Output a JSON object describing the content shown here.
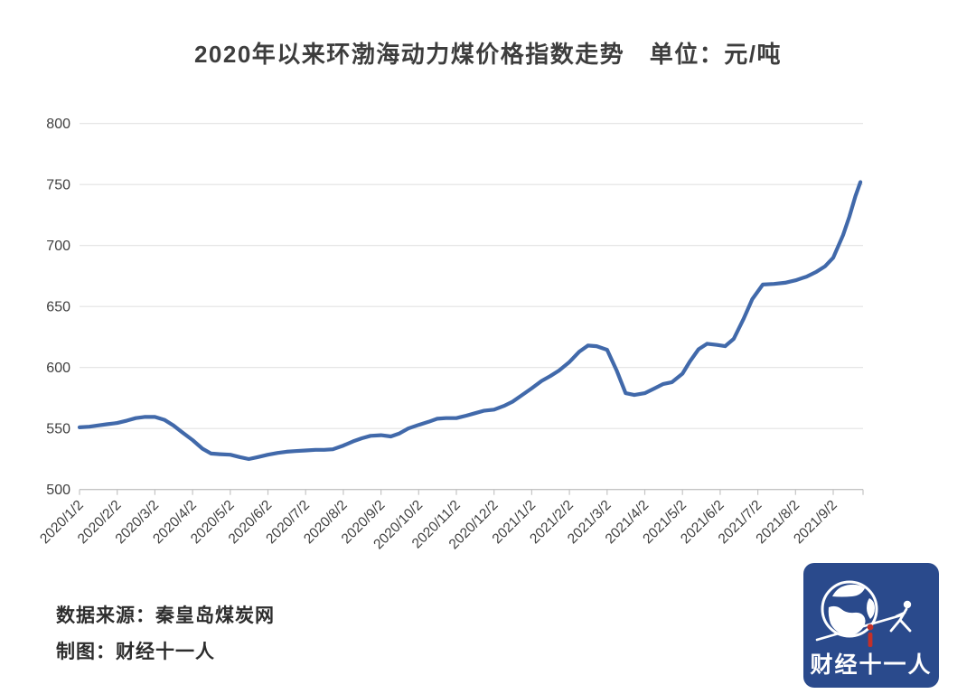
{
  "title": "2020年以来环渤海动力煤价格指数走势　单位：元/吨",
  "chart_data": {
    "type": "line",
    "title": "2020年以来环渤海动力煤价格指数走势",
    "unit_label": "单位：元/吨",
    "xlabel": "",
    "ylabel": "",
    "ylim": [
      500,
      800
    ],
    "y_ticks": [
      500,
      550,
      600,
      650,
      700,
      750,
      800
    ],
    "x_tick_labels": [
      "2020/1/2",
      "2020/2/2",
      "2020/3/2",
      "2020/4/2",
      "2020/5/2",
      "2020/6/2",
      "2020/7/2",
      "2020/8/2",
      "2020/9/2",
      "2020/10/2",
      "2020/11/2",
      "2020/12/2",
      "2021/1/2",
      "2021/2/2",
      "2021/3/2",
      "2021/4/2",
      "2021/5/2",
      "2021/6/2",
      "2021/7/2",
      "2021/8/2",
      "2021/9/2"
    ],
    "grid": true,
    "legend_position": "none",
    "line_color": "#4169aa",
    "grid_color": "#e3e3e3",
    "axis_color": "#c4c4c4",
    "label_color": "#3f3f3f",
    "series": [
      {
        "name": "环渤海动力煤价格指数 (元/吨)",
        "points": [
          [
            "2020/1/2",
            551
          ],
          [
            "2020/1/10",
            551.5
          ],
          [
            "2020/1/17",
            552.5
          ],
          [
            "2020/1/24",
            553.5
          ],
          [
            "2020/2/2",
            554.5
          ],
          [
            "2020/2/10",
            556.5
          ],
          [
            "2020/2/17",
            558.5
          ],
          [
            "2020/2/24",
            559.5
          ],
          [
            "2020/3/2",
            559.5
          ],
          [
            "2020/3/10",
            557
          ],
          [
            "2020/3/17",
            552.5
          ],
          [
            "2020/3/24",
            547
          ],
          [
            "2020/4/2",
            540.5
          ],
          [
            "2020/4/10",
            533.5
          ],
          [
            "2020/4/17",
            529.5
          ],
          [
            "2020/4/24",
            529
          ],
          [
            "2020/5/2",
            528.5
          ],
          [
            "2020/5/10",
            526.5
          ],
          [
            "2020/5/17",
            525
          ],
          [
            "2020/5/24",
            526.5
          ],
          [
            "2020/6/2",
            528.5
          ],
          [
            "2020/6/10",
            530
          ],
          [
            "2020/6/17",
            531
          ],
          [
            "2020/6/24",
            531.5
          ],
          [
            "2020/7/2",
            532
          ],
          [
            "2020/7/10",
            532.5
          ],
          [
            "2020/7/17",
            532.5
          ],
          [
            "2020/7/24",
            533
          ],
          [
            "2020/8/2",
            536
          ],
          [
            "2020/8/10",
            539.5
          ],
          [
            "2020/8/17",
            542
          ],
          [
            "2020/8/24",
            544
          ],
          [
            "2020/9/2",
            544.5
          ],
          [
            "2020/9/10",
            543.5
          ],
          [
            "2020/9/17",
            546
          ],
          [
            "2020/9/24",
            550
          ],
          [
            "2020/10/2",
            553
          ],
          [
            "2020/10/10",
            555.5
          ],
          [
            "2020/10/17",
            558
          ],
          [
            "2020/10/24",
            558.5
          ],
          [
            "2020/11/2",
            558.5
          ],
          [
            "2020/11/10",
            560.5
          ],
          [
            "2020/11/17",
            562.5
          ],
          [
            "2020/11/24",
            564.5
          ],
          [
            "2020/12/2",
            565.5
          ],
          [
            "2020/12/10",
            568.5
          ],
          [
            "2020/12/17",
            572
          ],
          [
            "2020/12/24",
            577
          ],
          [
            "2021/1/2",
            583
          ],
          [
            "2021/1/10",
            589
          ],
          [
            "2021/1/17",
            593
          ],
          [
            "2021/1/24",
            597.5
          ],
          [
            "2021/2/2",
            604.5
          ],
          [
            "2021/2/10",
            613
          ],
          [
            "2021/2/17",
            618
          ],
          [
            "2021/2/24",
            617.5
          ],
          [
            "2021/3/2",
            614.5
          ],
          [
            "2021/3/10",
            597
          ],
          [
            "2021/3/17",
            579
          ],
          [
            "2021/3/24",
            577.5
          ],
          [
            "2021/4/2",
            579
          ],
          [
            "2021/4/10",
            583
          ],
          [
            "2021/4/17",
            586.5
          ],
          [
            "2021/4/24",
            588
          ],
          [
            "2021/5/2",
            595
          ],
          [
            "2021/5/8",
            605
          ],
          [
            "2021/5/15",
            615
          ],
          [
            "2021/5/22",
            619.5
          ],
          [
            "2021/5/30",
            618.5
          ],
          [
            "2021/6/6",
            617.5
          ],
          [
            "2021/6/13",
            623.5
          ],
          [
            "2021/6/21",
            640
          ],
          [
            "2021/6/28",
            656
          ],
          [
            "2021/7/6",
            668
          ],
          [
            "2021/7/15",
            668.5
          ],
          [
            "2021/7/24",
            669.5
          ],
          [
            "2021/8/2",
            671.5
          ],
          [
            "2021/8/11",
            674.5
          ],
          [
            "2021/8/19",
            678.5
          ],
          [
            "2021/8/26",
            683
          ],
          [
            "2021/9/2",
            690
          ],
          [
            "2021/9/10",
            708.5
          ],
          [
            "2021/9/15",
            723.5
          ],
          [
            "2021/9/20",
            740.5
          ],
          [
            "2021/9/24",
            752
          ]
        ]
      }
    ]
  },
  "footer": {
    "source": "数据来源：秦皇岛煤炭网",
    "credit": "制图：财经十一人"
  },
  "logo": {
    "text": "财经十一人",
    "bg_color": "#2a4a8c",
    "accent_color": "#c43028"
  }
}
